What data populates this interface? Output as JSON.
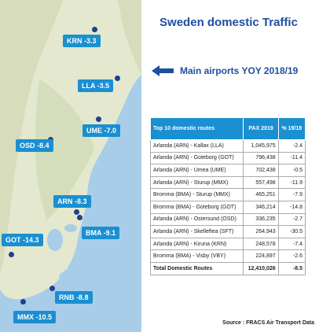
{
  "title": "Sweden domestic Traffic",
  "subtitle": "Main airports YOY 2018/19",
  "airports": [
    {
      "code": "KRN",
      "change": "-3.3",
      "label": "KRN -3.3"
    },
    {
      "code": "LLA",
      "change": "-3.5",
      "label": "LLA -3.5"
    },
    {
      "code": "UME",
      "change": "-7.0",
      "label": "UME -7.0"
    },
    {
      "code": "OSD",
      "change": "-8.4",
      "label": "OSD -8.4"
    },
    {
      "code": "ARN",
      "change": "-8.3",
      "label": "ARN -8.3"
    },
    {
      "code": "BMA",
      "change": "-9.1",
      "label": "BMA -9.1"
    },
    {
      "code": "GOT",
      "change": "-14.3",
      "label": "GOT -14.3"
    },
    {
      "code": "RNB",
      "change": "-8.8",
      "label": "RNB -8.8"
    },
    {
      "code": "MMX",
      "change": "-10.5",
      "label": "MMX -10.5"
    }
  ],
  "table": {
    "headers": [
      "Top 10 domestic routes",
      "PAX 2019",
      "% 19/18"
    ],
    "rows": [
      [
        "Arlanda  (ARN) - Kallax (LLA)",
        "1,045,975",
        "-2.4"
      ],
      [
        "Arlanda  (ARN) - Goteborg (GOT)",
        "796,438",
        "-11.4"
      ],
      [
        "Arlanda  (ARN) - Umea (UME)",
        "702,438",
        "-0.5"
      ],
      [
        "Arlanda  (ARN) - Sturup (MMX)",
        "557,498",
        "-11.9"
      ],
      [
        "Bromma (BMA) - Sturup (MMX)",
        "465,251",
        "-7.9"
      ],
      [
        "Bromma (BMA) - Goteborg (GOT)",
        "346,214",
        "-14.8"
      ],
      [
        "Arlanda  (ARN) - Ostersund (OSD)",
        "336,235",
        "-2.7"
      ],
      [
        "Arlanda  (ARN) - Skelleftea (SFT)",
        "264,943",
        "-30.5"
      ],
      [
        "Arlanda  (ARN) - Kiruna (KRN)",
        "248,578",
        "-7.4"
      ],
      [
        "Bromma (BMA) - Visby (VBY)",
        "224,897",
        "-2.6"
      ]
    ],
    "total": [
      "Total Domestic Routes",
      "12,410,026",
      "-8.5"
    ]
  },
  "source": "Source : FRACS Air Transport Data",
  "colors": {
    "accent": "#1a8fd1",
    "title": "#1f4fa0",
    "land": "#dfe6c9",
    "water": "#9fc7e6"
  }
}
